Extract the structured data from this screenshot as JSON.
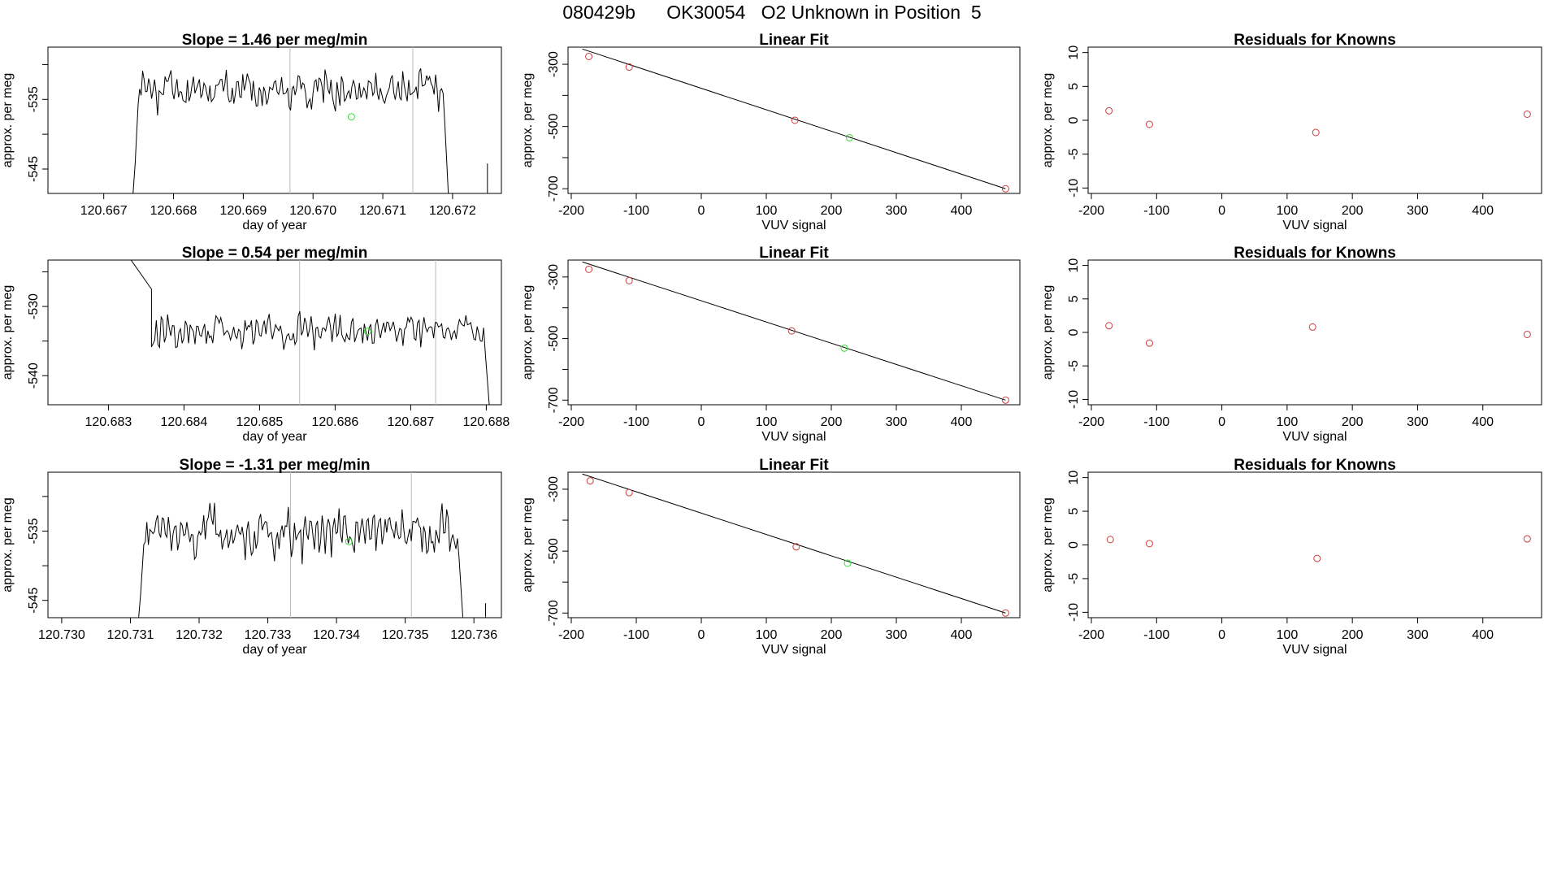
{
  "page": {
    "title": "080429b      OK30054   O2 Unknown in Position  5"
  },
  "chart_data": [
    {
      "type": "line",
      "row": 0,
      "panel": "timeseries",
      "title": "Slope =  1.46  per meg/min",
      "xlabel": "day of year",
      "ylabel": "approx. per meg",
      "xlim": [
        120.6662,
        120.6727
      ],
      "ylim": [
        -548.5,
        -527.5
      ],
      "xticks": [
        120.667,
        120.668,
        120.669,
        120.67,
        120.671,
        120.672
      ],
      "xtick_labels": [
        "120.667",
        "120.668",
        "120.669",
        "120.670",
        "120.671",
        "120.672"
      ],
      "yticks": [
        -545,
        -535
      ],
      "ytick_labels": [
        "-545",
        "-535"
      ],
      "y_extra_ticks": [
        -540,
        -530
      ],
      "vlines": [
        120.66967,
        120.67143
      ],
      "start": 120.66745,
      "end": 120.67195,
      "tail_x": [
        120.6725,
        120.6725
      ],
      "tail_y": [
        -548.5,
        -544.2
      ],
      "seed": 11,
      "mid": -533.6,
      "amp": 1.9,
      "noise": 1.2,
      "jitter": 0.9,
      "marker": [
        120.67055,
        -537.5
      ]
    },
    {
      "type": "line",
      "row": 1,
      "panel": "timeseries",
      "title": "Slope =  0.54  per meg/min",
      "xlabel": "day of year",
      "ylabel": "approx. per meg",
      "xlim": [
        120.6822,
        120.6882
      ],
      "ylim": [
        -544.2,
        -523.3
      ],
      "xticks": [
        120.683,
        120.684,
        120.685,
        120.686,
        120.687,
        120.688
      ],
      "xtick_labels": [
        "120.683",
        "120.684",
        "120.685",
        "120.686",
        "120.687",
        "120.688"
      ],
      "yticks": [
        -540,
        -530
      ],
      "ytick_labels": [
        "-540",
        "-530"
      ],
      "y_extra_ticks": [
        -535,
        -525
      ],
      "vlines": [
        120.68553,
        120.68733
      ],
      "start": 120.68357,
      "end": 120.68805,
      "head_x": [
        120.6833,
        120.68357
      ],
      "head_y": [
        -523.3,
        -527.5
      ],
      "seed": 22,
      "mid": -533.5,
      "amp": 1.8,
      "noise": 1.1,
      "jitter": 0.9,
      "marker": [
        120.68643,
        -533.6
      ]
    },
    {
      "type": "line",
      "row": 2,
      "panel": "timeseries",
      "title": "Slope =  -1.31  per meg/min",
      "xlabel": "day of year",
      "ylabel": "approx. per meg",
      "xlim": [
        120.7298,
        120.7364
      ],
      "ylim": [
        -547.5,
        -526.5
      ],
      "xticks": [
        120.73,
        120.731,
        120.732,
        120.733,
        120.734,
        120.735,
        120.736
      ],
      "xtick_labels": [
        "120.730",
        "120.731",
        "120.732",
        "120.733",
        "120.734",
        "120.735",
        "120.736"
      ],
      "yticks": [
        -545,
        -535
      ],
      "ytick_labels": [
        "-545",
        "-535"
      ],
      "y_extra_ticks": [
        -540,
        -530
      ],
      "vlines": [
        120.73333,
        120.73509
      ],
      "start": 120.73115,
      "end": 120.73585,
      "tail_x": [
        120.73617,
        120.73617
      ],
      "tail_y": [
        -547.5,
        -545.4
      ],
      "seed": 33,
      "mid": -535.2,
      "amp": 2.6,
      "noise": 1.6,
      "jitter": 1.2,
      "marker": [
        120.73418,
        -536.5
      ]
    },
    {
      "type": "scatter",
      "row": 0,
      "panel": "fit",
      "title": "Linear Fit",
      "xlabel": "VUV signal",
      "ylabel": "approx. per meg",
      "xlim": [
        -205,
        490
      ],
      "ylim": [
        -715,
        -245
      ],
      "xticks": [
        -200,
        -100,
        0,
        100,
        200,
        300,
        400
      ],
      "xtick_labels": [
        "-200",
        "-100",
        "0",
        "100",
        "200",
        "300",
        "400"
      ],
      "yticks": [
        -700,
        -500,
        -300
      ],
      "ytick_labels": [
        "-700",
        "-500",
        "-300"
      ],
      "y_extra_ticks": [
        -600,
        -400
      ],
      "line_x": [
        -183,
        468
      ],
      "line_y": [
        -251,
        -700
      ],
      "knowns_x": [
        -173,
        -111,
        144,
        468
      ],
      "knowns_y": [
        -275,
        -309,
        -480,
        -700
      ],
      "unknown_x": [
        228
      ],
      "unknown_y": [
        -536
      ]
    },
    {
      "type": "scatter",
      "row": 1,
      "panel": "fit",
      "title": "Linear Fit",
      "xlabel": "VUV signal",
      "ylabel": "approx. per meg",
      "xlim": [
        -205,
        490
      ],
      "ylim": [
        -715,
        -245
      ],
      "xticks": [
        -200,
        -100,
        0,
        100,
        200,
        300,
        400
      ],
      "xtick_labels": [
        "-200",
        "-100",
        "0",
        "100",
        "200",
        "300",
        "400"
      ],
      "yticks": [
        -700,
        -500,
        -300
      ],
      "ytick_labels": [
        "-700",
        "-500",
        "-300"
      ],
      "y_extra_ticks": [
        -600,
        -400
      ],
      "line_x": [
        -183,
        468
      ],
      "line_y": [
        -251,
        -700
      ],
      "knowns_x": [
        -173,
        -111,
        139,
        468
      ],
      "knowns_y": [
        -275,
        -312,
        -475,
        -700
      ],
      "unknown_x": [
        220
      ],
      "unknown_y": [
        -531
      ]
    },
    {
      "type": "scatter",
      "row": 2,
      "panel": "fit",
      "title": "Linear Fit",
      "xlabel": "VUV signal",
      "ylabel": "approx. per meg",
      "xlim": [
        -205,
        490
      ],
      "ylim": [
        -715,
        -245
      ],
      "xticks": [
        -200,
        -100,
        0,
        100,
        200,
        300,
        400
      ],
      "xtick_labels": [
        "-200",
        "-100",
        "0",
        "100",
        "200",
        "300",
        "400"
      ],
      "yticks": [
        -700,
        -500,
        -300
      ],
      "ytick_labels": [
        "-700",
        "-500",
        "-300"
      ],
      "y_extra_ticks": [
        -600,
        -400
      ],
      "line_x": [
        -183,
        468
      ],
      "line_y": [
        -251,
        -700
      ],
      "knowns_x": [
        -171,
        -111,
        146,
        468
      ],
      "knowns_y": [
        -273,
        -311,
        -486,
        -700
      ],
      "unknown_x": [
        225
      ],
      "unknown_y": [
        -539
      ]
    },
    {
      "type": "scatter",
      "row": 0,
      "panel": "residuals",
      "title": "Residuals for Knowns",
      "xlabel": "VUV signal",
      "ylabel": "approx. per meg",
      "xlim": [
        -205,
        490
      ],
      "ylim": [
        -10.8,
        10.8
      ],
      "xticks": [
        -200,
        -100,
        0,
        100,
        200,
        300,
        400
      ],
      "xtick_labels": [
        "-200",
        "-100",
        "0",
        "100",
        "200",
        "300",
        "400"
      ],
      "yticks": [
        -10,
        -5,
        0,
        5,
        10
      ],
      "ytick_labels": [
        "-10",
        "-5",
        "0",
        "5",
        "10"
      ],
      "x": [
        -173,
        -111,
        144,
        468
      ],
      "y": [
        1.4,
        -0.6,
        -1.8,
        0.9
      ]
    },
    {
      "type": "scatter",
      "row": 1,
      "panel": "residuals",
      "title": "Residuals for Knowns",
      "xlabel": "VUV signal",
      "ylabel": "approx. per meg",
      "xlim": [
        -205,
        490
      ],
      "ylim": [
        -10.8,
        10.8
      ],
      "xticks": [
        -200,
        -100,
        0,
        100,
        200,
        300,
        400
      ],
      "xtick_labels": [
        "-200",
        "-100",
        "0",
        "100",
        "200",
        "300",
        "400"
      ],
      "yticks": [
        -10,
        -5,
        0,
        5,
        10
      ],
      "ytick_labels": [
        "-10",
        "-5",
        "0",
        "5",
        "10"
      ],
      "x": [
        -173,
        -111,
        139,
        468
      ],
      "y": [
        1.0,
        -1.6,
        0.8,
        -0.3
      ]
    },
    {
      "type": "scatter",
      "row": 2,
      "panel": "residuals",
      "title": "Residuals for Knowns",
      "xlabel": "VUV signal",
      "ylabel": "approx. per meg",
      "xlim": [
        -205,
        490
      ],
      "ylim": [
        -10.8,
        10.8
      ],
      "xticks": [
        -200,
        -100,
        0,
        100,
        200,
        300,
        400
      ],
      "xtick_labels": [
        "-200",
        "-100",
        "0",
        "100",
        "200",
        "300",
        "400"
      ],
      "yticks": [
        -10,
        -5,
        0,
        5,
        10
      ],
      "ytick_labels": [
        "-10",
        "-5",
        "0",
        "5",
        "10"
      ],
      "x": [
        -171,
        -111,
        146,
        468
      ],
      "y": [
        0.8,
        0.2,
        -2.0,
        0.9
      ]
    }
  ],
  "colors": {
    "line": "#000000",
    "known_marker": "#cd3b3b",
    "unknown_marker": "#33dd33",
    "vline": "#bbbbbb",
    "frame": "#000000"
  }
}
